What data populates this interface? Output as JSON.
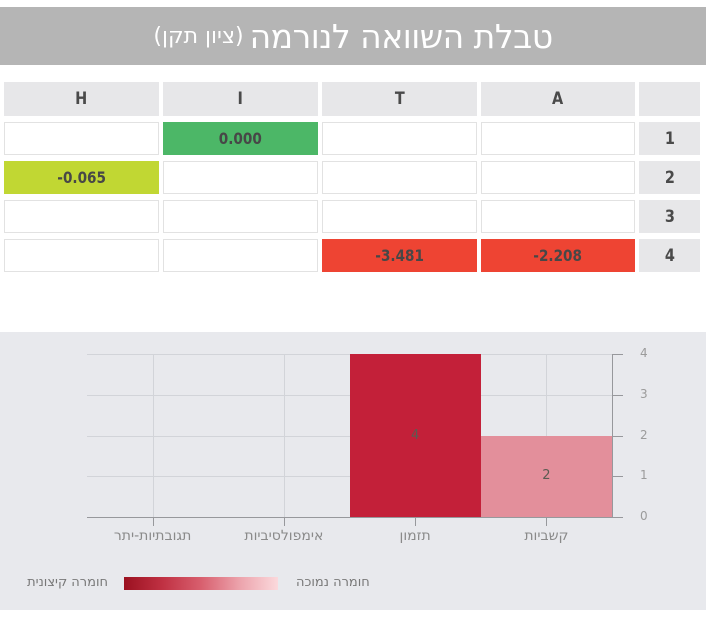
{
  "title": {
    "main": "טבלת השוואה לנורמה",
    "sub": "(ציון תקן)"
  },
  "table": {
    "col_h": "H",
    "col_i": "I",
    "col_t": "T",
    "col_a": "A",
    "row1": "1",
    "row2": "2",
    "row3": "3",
    "row4": "4",
    "cell_r1_i": {
      "value": "0.000",
      "color": "#4cb767"
    },
    "cell_r2_h": {
      "value": "-0.065",
      "color": "#c1d733"
    },
    "cell_r4_t": {
      "value": "-3.481",
      "color": "#ee4433"
    },
    "cell_r4_a": {
      "value": "-2.208",
      "color": "#ee4433"
    }
  },
  "chart_data": {
    "type": "bar",
    "title": "",
    "categories": [
      "תגובתיות-יתר",
      "אימפולסיביות",
      "תזמון",
      "קשביות"
    ],
    "values": [
      0,
      0,
      4,
      2
    ],
    "bar_colors": [
      "",
      "",
      "#c32039",
      "#e38f9b"
    ],
    "data_labels": [
      "",
      "",
      "4",
      "2"
    ],
    "ylim": [
      0,
      4
    ],
    "yticks": [
      0,
      1,
      2,
      3,
      4
    ],
    "y_axis_position": "right",
    "grid": true,
    "colors": {
      "panel_bg": "#e8e9ed",
      "grid": "#d2d4d9",
      "axis": "#97989c",
      "tick_label": "#9b9b9b",
      "x_label": "#8a8a8a",
      "data_label": "#5c5b52"
    }
  },
  "legend": {
    "extreme_label": "חומרה קיצונית",
    "low_label": "חומרה נמוכה",
    "gradient_stops": [
      "#9b1120",
      "#c03143",
      "#d85f6e",
      "#eca3ac",
      "#fbd9dc"
    ]
  }
}
